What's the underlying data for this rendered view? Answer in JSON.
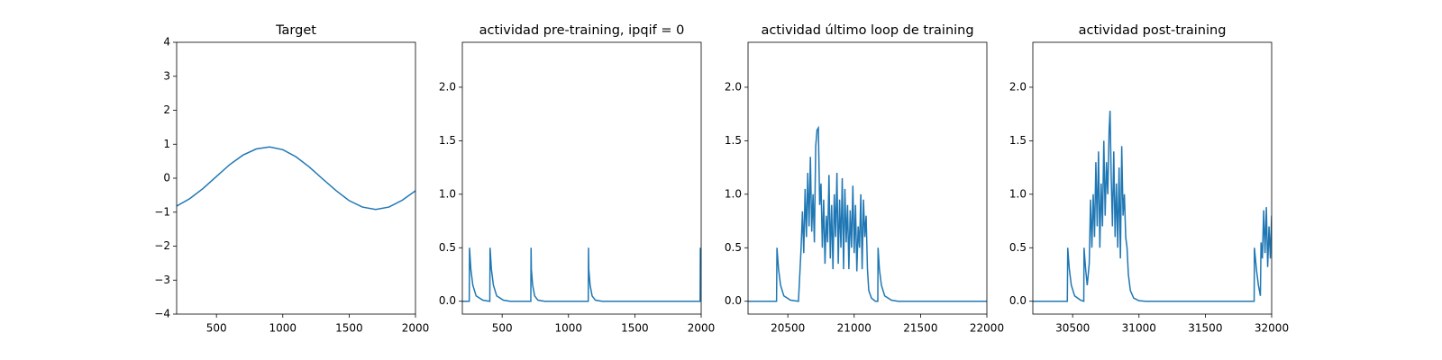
{
  "chart_data": [
    {
      "type": "line",
      "title": "Target",
      "x": [
        200,
        300,
        400,
        500,
        600,
        700,
        800,
        900,
        1000,
        1100,
        1200,
        1300,
        1400,
        1500,
        1600,
        1700,
        1800,
        1900,
        2000
      ],
      "series": [
        {
          "color": "#1f77b4",
          "values": [
            -0.82,
            -0.6,
            -0.3,
            0.05,
            0.4,
            0.68,
            0.86,
            0.92,
            0.84,
            0.63,
            0.33,
            -0.02,
            -0.36,
            -0.66,
            -0.85,
            -0.92,
            -0.85,
            -0.65,
            -0.37
          ]
        }
      ],
      "xlim": [
        200,
        2000
      ],
      "xticks": [
        500,
        1000,
        1500,
        2000
      ],
      "ylim": [
        -4,
        4
      ],
      "yticks": [
        {
          "value": -4,
          "label": "−4"
        },
        {
          "value": -3,
          "label": "−3"
        },
        {
          "value": -2,
          "label": "−2"
        },
        {
          "value": -1,
          "label": "−1"
        },
        0,
        1,
        2,
        3,
        4
      ]
    },
    {
      "type": "line",
      "title": "actividad pre-training, ipqif = 0",
      "x": [
        200,
        252,
        254,
        264,
        279,
        304,
        354,
        404,
        407,
        409,
        419,
        434,
        459,
        509,
        559,
        716,
        718,
        720,
        730,
        745,
        770,
        820,
        870,
        1149,
        1151,
        1153,
        1163,
        1178,
        1203,
        1253,
        1303,
        1992,
        1994,
        2000
      ],
      "series": [
        {
          "color": "#1f77b4",
          "values": [
            0,
            0,
            0.5,
            0.3,
            0.15,
            0.05,
            0.01,
            0,
            0,
            0.5,
            0.3,
            0.15,
            0.05,
            0.01,
            0,
            0,
            0.5,
            0.3,
            0.15,
            0.05,
            0.01,
            0,
            0,
            0,
            0.5,
            0.3,
            0.15,
            0.05,
            0.01,
            0,
            0,
            0,
            0.5,
            0.3
          ]
        }
      ],
      "xlim": [
        200,
        2000
      ],
      "xticks": [
        500,
        1000,
        1500,
        2000
      ],
      "ylim": [
        -0.12,
        2.42
      ],
      "yticks": [
        {
          "value": 0,
          "label": "0.0"
        },
        0.5,
        {
          "value": 1,
          "label": "1.0"
        },
        1.5,
        {
          "value": 2,
          "label": "2.0"
        }
      ]
    },
    {
      "type": "line",
      "title": "actividad último loop de training",
      "x": [
        20200,
        20415,
        20418,
        20430,
        20445,
        20470,
        20520,
        20580,
        20600,
        20610,
        20620,
        20630,
        20640,
        20650,
        20660,
        20670,
        20680,
        20690,
        20700,
        20710,
        20720,
        20730,
        20740,
        20750,
        20760,
        20770,
        20780,
        20790,
        20800,
        20810,
        20820,
        20830,
        20840,
        20850,
        20860,
        20870,
        20880,
        20890,
        20900,
        20910,
        20920,
        20930,
        20940,
        20950,
        20960,
        20970,
        20980,
        20990,
        21000,
        21010,
        21020,
        21030,
        21040,
        21050,
        21060,
        21070,
        21080,
        21090,
        21100,
        21110,
        21130,
        21160,
        21178,
        21180,
        21190,
        21205,
        21230,
        21280,
        21330,
        22000
      ],
      "series": [
        {
          "color": "#1f77b4",
          "values": [
            0,
            0,
            0.5,
            0.3,
            0.15,
            0.05,
            0.01,
            0,
            0.5,
            0.84,
            0.45,
            1.05,
            0.6,
            1.2,
            0.7,
            1.35,
            0.65,
            1.0,
            0.55,
            1.45,
            1.6,
            1.62,
            0.9,
            1.1,
            0.5,
            0.95,
            0.35,
            0.8,
            0.55,
            1.18,
            0.4,
            0.9,
            0.3,
            1.0,
            0.6,
            1.2,
            0.35,
            0.95,
            0.5,
            1.15,
            0.3,
            1.05,
            0.55,
            0.9,
            0.3,
            0.85,
            0.5,
            1.08,
            0.45,
            0.9,
            0.28,
            0.7,
            0.5,
            1.0,
            0.3,
            0.95,
            0.6,
            0.8,
            0.3,
            0.1,
            0.03,
            0,
            0,
            0.5,
            0.3,
            0.15,
            0.05,
            0.01,
            0,
            0
          ]
        }
      ],
      "xlim": [
        20200,
        22000
      ],
      "xticks": [
        20500,
        21000,
        21500,
        22000
      ],
      "ylim": [
        -0.12,
        2.42
      ],
      "yticks": [
        {
          "value": 0,
          "label": "0.0"
        },
        0.5,
        {
          "value": 1,
          "label": "1.0"
        },
        1.5,
        {
          "value": 2,
          "label": "2.0"
        }
      ]
    },
    {
      "type": "line",
      "title": "actividad post-training",
      "x": [
        30200,
        30460,
        30463,
        30475,
        30490,
        30515,
        30560,
        30584,
        30586,
        30598,
        30610,
        30625,
        30635,
        30645,
        30655,
        30665,
        30675,
        30685,
        30695,
        30705,
        30715,
        30725,
        30735,
        30745,
        30755,
        30765,
        30775,
        30782,
        30790,
        30800,
        30810,
        30820,
        30830,
        30840,
        30850,
        30860,
        30870,
        30880,
        30890,
        30900,
        30910,
        30920,
        30935,
        30960,
        31000,
        31050,
        31868,
        31870,
        31885,
        31900,
        31915,
        31920,
        31930,
        31940,
        31950,
        31960,
        31970,
        31980,
        31990,
        32000
      ],
      "series": [
        {
          "color": "#1f77b4",
          "values": [
            0,
            0,
            0.5,
            0.3,
            0.15,
            0.05,
            0.01,
            0,
            0.5,
            0.3,
            0.15,
            0.35,
            0.95,
            0.5,
            1.0,
            0.6,
            1.3,
            0.7,
            1.4,
            0.5,
            1.1,
            0.7,
            1.5,
            0.8,
            1.3,
            1.0,
            1.6,
            1.78,
            1.2,
            0.7,
            1.4,
            0.6,
            1.1,
            0.5,
            1.25,
            0.4,
            1.45,
            0.8,
            1.0,
            0.6,
            0.5,
            0.25,
            0.1,
            0.03,
            0.005,
            0,
            0,
            0.5,
            0.3,
            0.15,
            0.05,
            0.55,
            0.4,
            0.85,
            0.45,
            0.88,
            0.32,
            0.7,
            0.4,
            0.8
          ]
        }
      ],
      "xlim": [
        30200,
        32000
      ],
      "xticks": [
        30500,
        31000,
        31500,
        32000
      ],
      "ylim": [
        -0.12,
        2.42
      ],
      "yticks": [
        {
          "value": 0,
          "label": "0.0"
        },
        0.5,
        {
          "value": 1,
          "label": "1.0"
        },
        1.5,
        {
          "value": 2,
          "label": "2.0"
        }
      ]
    }
  ]
}
